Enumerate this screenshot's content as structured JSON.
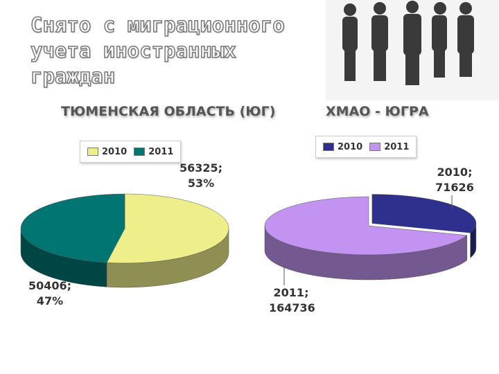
{
  "title": "Снято с миграционного учета иностранных граждан",
  "chart_data": [
    {
      "type": "pie",
      "title": "ТЮМЕНСКАЯ ОБЛАСТЬ (ЮГ)",
      "series": [
        {
          "name": "2010",
          "color": "#eeee8a",
          "values": [
            56325
          ],
          "value_labels": [
            "56325; 53%"
          ]
        },
        {
          "name": "2011",
          "color": "#007572",
          "values": [
            50406
          ],
          "value_labels": [
            "50406; 47%"
          ]
        }
      ]
    },
    {
      "type": "pie",
      "title": "ХМАО - ЮГРА",
      "series": [
        {
          "name": "2010",
          "color": "#2f2f8e",
          "values": [
            71626
          ],
          "value_labels": [
            "2010; 71626"
          ]
        },
        {
          "name": "2011",
          "color": "#c293f0",
          "values": [
            164736
          ],
          "value_labels": [
            "2011; 164736"
          ]
        }
      ]
    }
  ]
}
